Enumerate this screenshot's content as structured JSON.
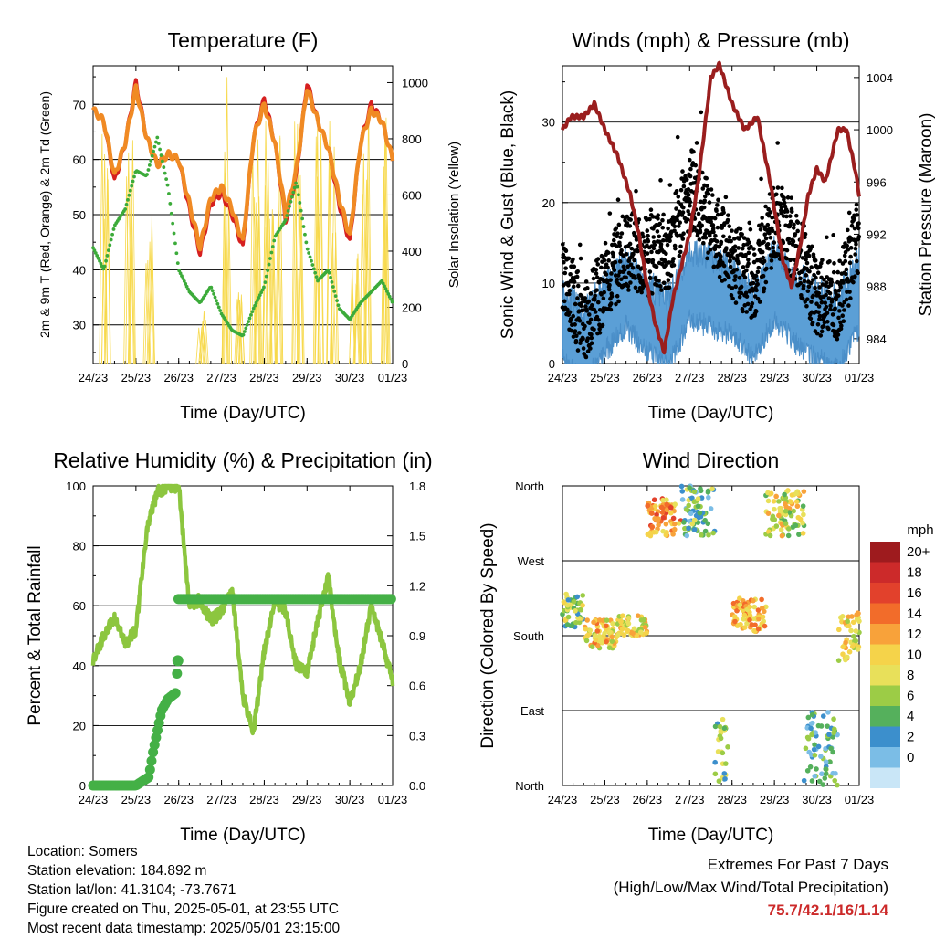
{
  "chart_data": [
    {
      "type": "line",
      "title": "Temperature (F)",
      "xlabel": "Time (Day/UTC)",
      "ylabel": "2m & 9m T (Red, Orange) & 2m Td (Green)",
      "ylabel_right": "Solar Insolation (Yellow)",
      "x_ticks": [
        "24/23",
        "25/23",
        "26/23",
        "27/23",
        "28/23",
        "29/23",
        "30/23",
        "01/23"
      ],
      "ylim": [
        23,
        77
      ],
      "y_ticks": [
        30,
        40,
        50,
        60,
        70
      ],
      "ylim_right": [
        0,
        1060
      ],
      "y_ticks_right": [
        0,
        200,
        400,
        600,
        800,
        1000
      ],
      "grid": "horizontal",
      "x": [
        0,
        0.25,
        0.5,
        0.75,
        1,
        1.25,
        1.5,
        1.75,
        2,
        2.25,
        2.5,
        2.75,
        3,
        3.25,
        3.5,
        3.75,
        4,
        4.25,
        4.5,
        4.75,
        5,
        5.25,
        5.5,
        5.75,
        6,
        6.25,
        6.5,
        6.75,
        7
      ],
      "series": [
        {
          "color": "#d62020",
          "values": [
            69,
            67,
            56,
            63,
            74,
            64,
            59,
            61,
            60,
            51,
            43,
            52,
            54,
            50,
            44,
            64,
            71,
            63,
            49,
            57,
            74,
            67,
            62,
            52,
            45,
            63,
            70,
            67,
            60
          ]
        },
        {
          "color": "#f08a24",
          "values": [
            69,
            67,
            57,
            63,
            73,
            64,
            59,
            61,
            60,
            52,
            44,
            53,
            55,
            51,
            45,
            64,
            70,
            63,
            50,
            58,
            73,
            67,
            62,
            53,
            46,
            63,
            69,
            67,
            60
          ]
        },
        {
          "color": "#3cab3a",
          "values": [
            44,
            40,
            48,
            51,
            58,
            57,
            64,
            55,
            40,
            36,
            34,
            37,
            32,
            29,
            28,
            33,
            37,
            46,
            49,
            56,
            44,
            38,
            40,
            33,
            31,
            34,
            36,
            38,
            34
          ]
        },
        {
          "color": "#f7d94c",
          "type": "spikes",
          "peak_days": [
            0.3,
            0.85,
            1.3,
            2.55,
            3.1,
            3.4,
            3.8,
            4.1,
            4.3,
            4.8,
            5.3,
            5.6,
            6.1,
            6.35,
            6.8
          ],
          "peak_values": [
            850,
            880,
            550,
            200,
            1060,
            300,
            850,
            900,
            850,
            900,
            850,
            900,
            400,
            920,
            900
          ]
        }
      ]
    },
    {
      "type": "scatter",
      "title": "Winds (mph) & Pressure (mb)",
      "xlabel": "Time (Day/UTC)",
      "ylabel": "Sonic Wind & Gust (Blue, Black)",
      "ylabel_right": "Station Pressure (Maroon)",
      "x_ticks": [
        "24/23",
        "25/23",
        "26/23",
        "27/23",
        "28/23",
        "29/23",
        "30/23",
        "01/23"
      ],
      "ylim": [
        0,
        37
      ],
      "y_ticks": [
        0,
        10,
        20,
        30
      ],
      "ylim_right": [
        982.1,
        1004.9
      ],
      "y_ticks_right": [
        984,
        988,
        992,
        996,
        1000,
        1004
      ],
      "grid": "horizontal",
      "pressure_x": [
        0,
        0.2,
        0.5,
        0.75,
        1,
        1.3,
        1.6,
        1.8,
        2,
        2.2,
        2.4,
        2.6,
        3,
        3.2,
        3.5,
        3.7,
        4,
        4.3,
        4.6,
        4.9,
        5.2,
        5.4,
        5.6,
        5.8,
        6,
        6.2,
        6.5,
        6.7,
        6.9,
        7
      ],
      "pressure": [
        1000,
        1001,
        1001,
        1002,
        1000,
        998,
        995,
        992,
        988,
        985,
        983,
        987,
        992,
        996,
        1004,
        1005,
        1002,
        1000,
        1001,
        996,
        990,
        988,
        991,
        995,
        997,
        996,
        1000,
        1000,
        997,
        995
      ],
      "wind_mean_x": [
        0,
        0.5,
        1,
        1.5,
        2,
        2.5,
        3,
        3.5,
        4,
        4.5,
        5,
        5.5,
        6,
        6.5,
        7
      ],
      "wind_mean": [
        5,
        2,
        6,
        9,
        6,
        4,
        10,
        9,
        8,
        5,
        10,
        7,
        5,
        4,
        9
      ],
      "gust_mean": [
        11,
        5,
        10,
        14,
        13,
        14,
        22,
        17,
        13,
        10,
        18,
        15,
        8,
        8,
        16
      ]
    },
    {
      "type": "line",
      "title": "Relative Humidity (%) & Precipitation (in)",
      "xlabel": "Time (Day/UTC)",
      "ylabel": "Percent & Total Rainfall",
      "x_ticks": [
        "24/23",
        "25/23",
        "26/23",
        "27/23",
        "28/23",
        "29/23",
        "30/23",
        "01/23"
      ],
      "ylim": [
        0,
        100
      ],
      "y_ticks": [
        0,
        20,
        40,
        60,
        80,
        100
      ],
      "ylim_right": [
        0,
        1.8
      ],
      "y_ticks_right": [
        "0.0",
        "0.3",
        "0.6",
        "0.9",
        "1.2",
        "1.5",
        "1.8"
      ],
      "grid": "horizontal",
      "series": [
        {
          "color": "#8cc63f",
          "x": [
            0,
            0.25,
            0.5,
            0.75,
            1,
            1.25,
            1.5,
            1.75,
            2,
            2.25,
            2.5,
            2.75,
            3,
            3.25,
            3.5,
            3.75,
            4,
            4.25,
            4.5,
            4.75,
            5,
            5.25,
            5.5,
            5.75,
            6,
            6.25,
            6.5,
            6.75,
            7
          ],
          "values": [
            42,
            50,
            56,
            47,
            52,
            85,
            98,
            100,
            100,
            60,
            62,
            55,
            58,
            65,
            30,
            18,
            45,
            62,
            58,
            40,
            38,
            55,
            70,
            42,
            28,
            40,
            60,
            48,
            35
          ]
        },
        {
          "color": "#44b046",
          "x": [
            0,
            0.25,
            0.5,
            0.75,
            1,
            1.3,
            1.4,
            1.6,
            1.75,
            1.9,
            1.95,
            2,
            2.5,
            3,
            3.5,
            4,
            4.5,
            5,
            5.5,
            6,
            6.5,
            7
          ],
          "values": [
            0,
            0,
            0,
            0,
            0,
            0.05,
            0.2,
            0.45,
            0.52,
            0.55,
            0.56,
            1.12,
            1.12,
            1.12,
            1.12,
            1.12,
            1.12,
            1.12,
            1.12,
            1.12,
            1.12,
            1.12
          ]
        }
      ]
    },
    {
      "type": "scatter",
      "title": "Wind Direction",
      "xlabel": "Time (Day/UTC)",
      "ylabel": "Direction (Colored By Speed)",
      "x_ticks": [
        "24/23",
        "25/23",
        "26/23",
        "27/23",
        "28/23",
        "29/23",
        "30/23",
        "01/23"
      ],
      "y_ticks": [
        "North",
        "East",
        "South",
        "West",
        "North"
      ],
      "ylim": [
        0,
        360
      ],
      "grid": "horizontal",
      "legend": {
        "title": "mph",
        "labels": [
          "20+",
          "18",
          "16",
          "14",
          "12",
          "10",
          "8",
          "6",
          "4",
          "2",
          "0"
        ],
        "colors": [
          "#9e1b1e",
          "#cc2a2a",
          "#e2412c",
          "#f26c2a",
          "#f8a23a",
          "#f5d34a",
          "#e8e05a",
          "#9ccc46",
          "#55b05c",
          "#3c8fcc",
          "#7bbde6",
          "#c9e6f7"
        ]
      },
      "direction_clusters": [
        {
          "x": [
            0,
            0.5
          ],
          "dir": [
            190,
            230
          ],
          "speed": 6
        },
        {
          "x": [
            0.5,
            1.3
          ],
          "dir": [
            165,
            200
          ],
          "speed": 10
        },
        {
          "x": [
            1.3,
            2
          ],
          "dir": [
            180,
            205
          ],
          "speed": 9
        },
        {
          "x": [
            2,
            2.8
          ],
          "dir": [
            300,
            345
          ],
          "speed": 12
        },
        {
          "x": [
            2.8,
            3.6
          ],
          "dir": [
            300,
            360
          ],
          "speed": 4
        },
        {
          "x": [
            3.6,
            3.9
          ],
          "dir": [
            0,
            80
          ],
          "speed": 5
        },
        {
          "x": [
            4,
            4.8
          ],
          "dir": [
            185,
            225
          ],
          "speed": 11
        },
        {
          "x": [
            4.8,
            5.7
          ],
          "dir": [
            300,
            355
          ],
          "speed": 8
        },
        {
          "x": [
            5.7,
            6.5
          ],
          "dir": [
            0,
            90
          ],
          "speed": 3
        },
        {
          "x": [
            6.5,
            7
          ],
          "dir": [
            150,
            210
          ],
          "speed": 9
        }
      ]
    }
  ],
  "station_info": [
    "Location: Somers",
    "Station elevation: 184.892 m",
    "Station lat/lon: 41.3104; -73.7671",
    "Figure created on Thu, 2025-05-01, at 23:55 UTC",
    "Most recent data timestamp: 2025/05/01 23:15:00"
  ],
  "extremes": {
    "title": "Extremes For Past 7 Days",
    "subtitle": "(High/Low/Max Wind/Total Precipitation)",
    "values": "75.7/42.1/16/1.14"
  }
}
